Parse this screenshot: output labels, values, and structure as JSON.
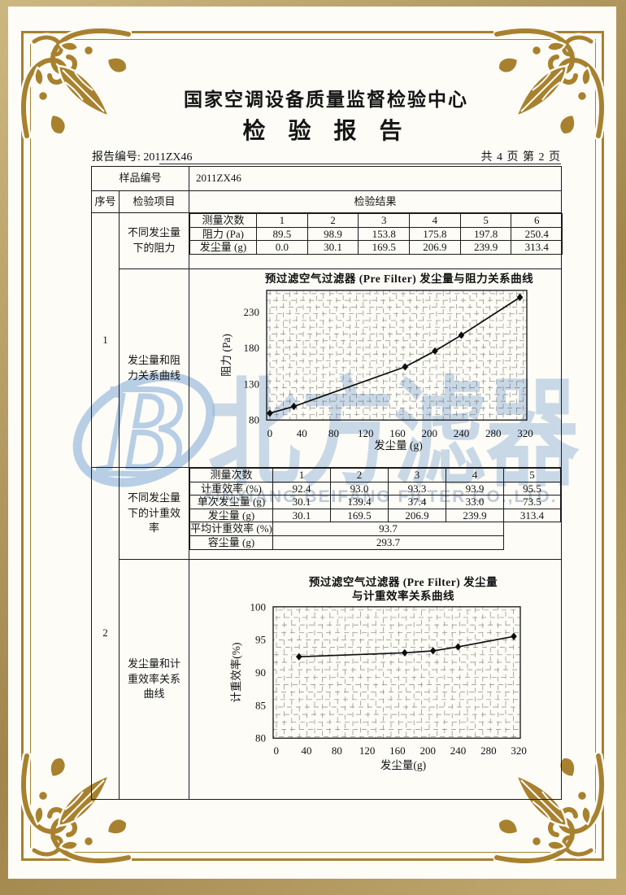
{
  "page": {
    "center_name": "国家空调设备质量监督检验中心",
    "report_title": "检 验 报 告",
    "report_no_label": "报告编号:",
    "report_no": "2011ZX46",
    "page_info": "共 4 页 第 2 页"
  },
  "sample": {
    "label": "样品编号",
    "value": "2011ZX46"
  },
  "table_header": {
    "seq": "序号",
    "item": "检验项目",
    "result": "检验结果"
  },
  "row1": {
    "seq": "1",
    "item_a": "不同发尘量下的阻力",
    "item_b": "发尘量和阻力关系曲线",
    "tableA": {
      "rows": [
        {
          "label": "测量次数",
          "values": [
            "1",
            "2",
            "3",
            "4",
            "5",
            "6"
          ]
        },
        {
          "label": "阻力 (Pa)",
          "values": [
            "89.5",
            "98.9",
            "153.8",
            "175.8",
            "197.8",
            "250.4"
          ]
        },
        {
          "label": "发尘量 (g)",
          "values": [
            "0.0",
            "30.1",
            "169.5",
            "206.9",
            "239.9",
            "313.4"
          ]
        }
      ]
    }
  },
  "row2": {
    "seq": "2",
    "item_a": "不同发尘量下的计重效率",
    "item_b": "发尘量和计重效率关系曲线",
    "tableB": {
      "rows": [
        {
          "label": "测量次数",
          "values": [
            "1",
            "2",
            "3",
            "4",
            "5"
          ]
        },
        {
          "label": "计重效率 (%)",
          "values": [
            "92.4",
            "93.0",
            "93.3",
            "93.9",
            "95.5"
          ]
        },
        {
          "label": "单次发尘量 (g)",
          "values": [
            "30.1",
            "139.4",
            "37.4",
            "33.0",
            "73.5"
          ]
        },
        {
          "label": "发尘量 (g)",
          "values": [
            "30.1",
            "169.5",
            "206.9",
            "239.9",
            "313.4"
          ]
        }
      ],
      "span_rows": [
        {
          "label": "平均计重效率 (%)",
          "value": "93.7"
        },
        {
          "label": "容尘量 (g)",
          "value": "293.7"
        }
      ]
    }
  },
  "watermark": {
    "logo_letter": "B",
    "text_cn": "北方滤器",
    "text_en": "XINXIANG BEIFANG FILTER CO.,LTD.",
    "color": "#abc7e3"
  },
  "frame": {
    "gold": "#a8812f",
    "line_color": "#1b1b1b"
  },
  "chart_data": [
    {
      "type": "line",
      "title": "预过滤空气过滤器 (Pre Filter) 发尘量与阻力关系曲线",
      "xlabel": "发尘量 (g)",
      "ylabel": "阻力 (Pa)",
      "x": [
        0,
        30.1,
        169.5,
        206.9,
        239.9,
        313.4
      ],
      "y": [
        89.5,
        98.9,
        153.8,
        175.8,
        197.8,
        250.4
      ],
      "xticks": [
        0,
        40,
        80,
        120,
        160,
        200,
        240,
        280,
        320
      ],
      "yticks": [
        80,
        130,
        180,
        230
      ],
      "xlim": [
        -4,
        322
      ],
      "ylim": [
        80,
        260
      ],
      "grid": "dense-dashed",
      "marker": "diamond",
      "legend": "none"
    },
    {
      "type": "line",
      "title": "预过滤空气过滤器 (Pre Filter) 发尘量",
      "title2": "与计重效率关系曲线",
      "xlabel": "发尘量(g)",
      "ylabel": "计重效率(%)",
      "x": [
        30.1,
        169.5,
        206.9,
        239.9,
        313.4
      ],
      "y": [
        92.4,
        93.0,
        93.3,
        93.9,
        95.5
      ],
      "xticks": [
        0,
        40,
        80,
        120,
        160,
        200,
        240,
        280,
        320
      ],
      "yticks": [
        80,
        85,
        90,
        95,
        100
      ],
      "xlim": [
        -4,
        322
      ],
      "ylim": [
        80,
        100
      ],
      "grid": "dense-dashed",
      "marker": "diamond",
      "legend": "none"
    }
  ]
}
